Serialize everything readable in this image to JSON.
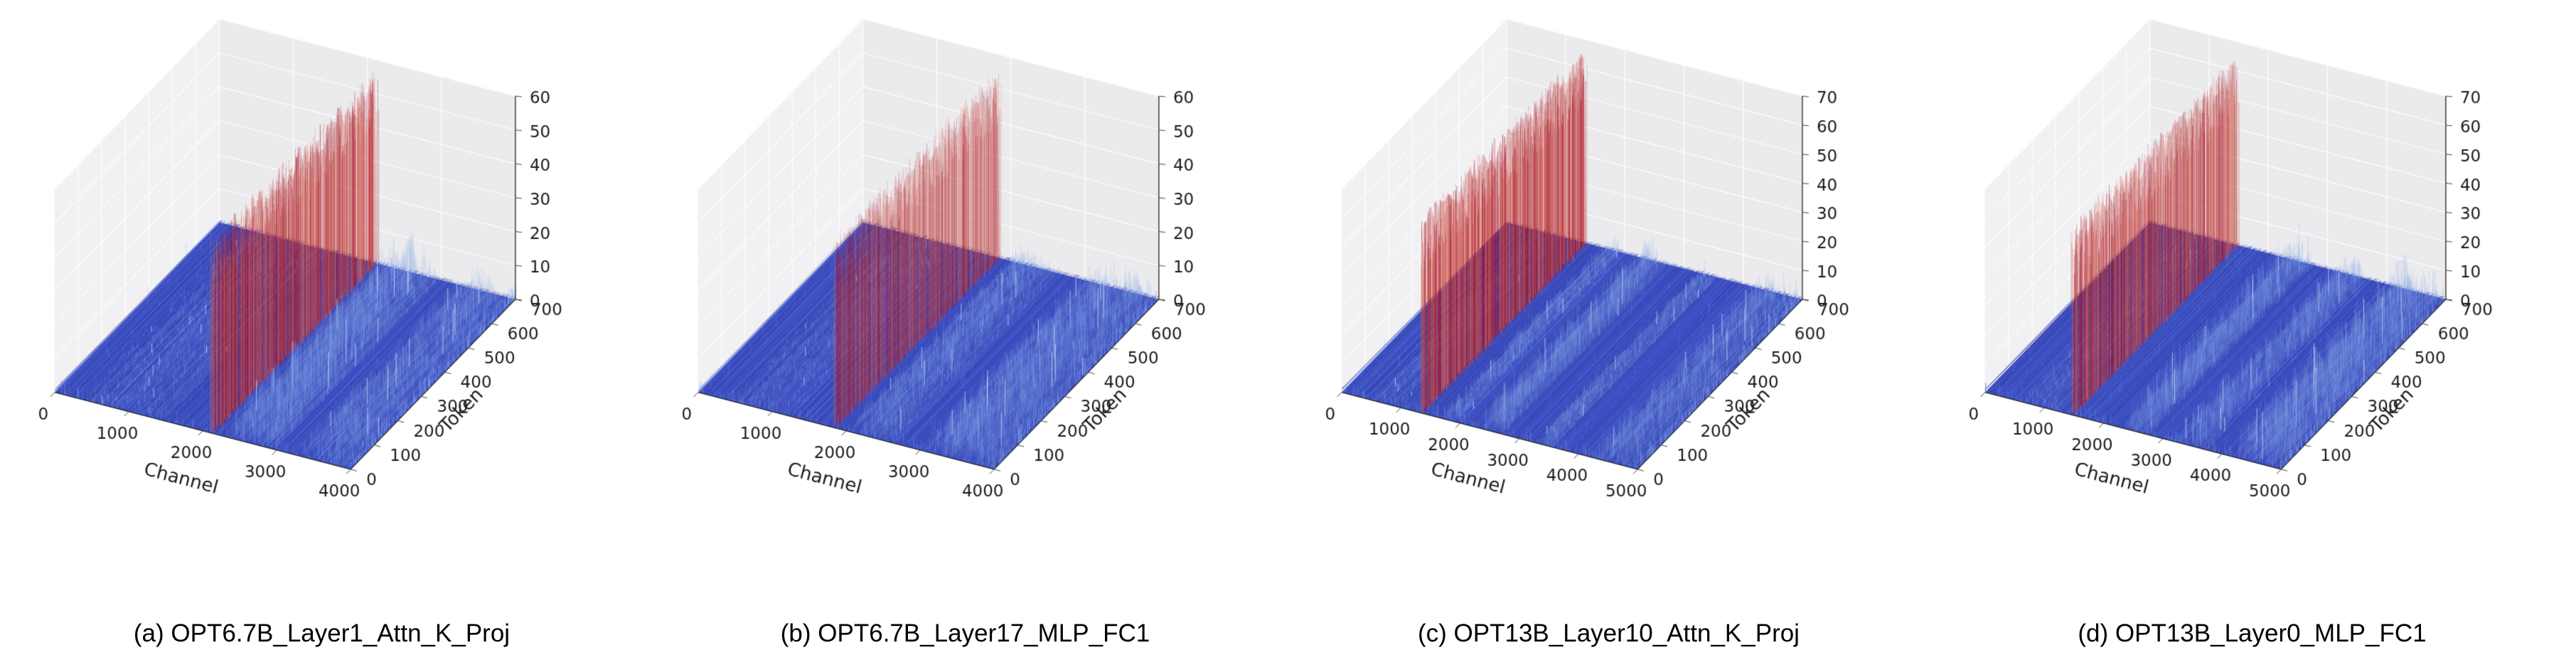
{
  "style": {
    "background": "#ffffff",
    "pane_left": "#f1f1f4",
    "pane_back": "#ebebee",
    "pane_floor": "#f6f6f8",
    "pane_edge": "#d4d4d9",
    "grid": "#ffffff",
    "spine": "#222222",
    "tick_color": "#1a1a1a",
    "caption_color": "#000000",
    "carpet_base": "#3b4cc0",
    "carpet_stripes": [
      "#2f3fae",
      "#4a5ccb",
      "#3b4cc0",
      "#5872d4",
      "#33439f",
      "#4156c6"
    ],
    "speckle": "rgba(125,155,230,0.55)",
    "band_stroke": "rgba(138,170,235,0.32)",
    "band_fill": "rgba(125,160,228,0.10)",
    "band_tip": "rgba(208,224,250,0.95)",
    "wall_colors": [
      [
        178,
        24,
        43
      ],
      [
        214,
        96,
        77
      ],
      [
        152,
        10,
        30
      ],
      [
        226,
        120,
        95
      ]
    ],
    "wall_fill": [
      185,
      28,
      38
    ],
    "front_fuzz": "rgba(100,132,216,0.7)",
    "edge_fuzz": "rgba(128,160,233,0.85)"
  },
  "chart_data": [
    {
      "type": "surface",
      "projection": "3d",
      "title": "(a) OPT6.7B_Layer1_Attn_K_Proj",
      "xlabel": "Channel",
      "ylabel": "Token",
      "xlim": [
        0,
        4000
      ],
      "ylim": [
        0,
        700
      ],
      "zlim": [
        0,
        60
      ],
      "x_ticks": [
        0,
        1000,
        2000,
        3000,
        4000
      ],
      "y_ticks": [
        0,
        100,
        200,
        300,
        400,
        500,
        600,
        700
      ],
      "z_ticks": [
        0,
        10,
        20,
        30,
        40,
        50,
        60
      ],
      "colormap": "coolwarm",
      "legend": "none",
      "grid": true,
      "surface_summary": {
        "baseline_noise_magnitude": 2,
        "outlier_channel": 2130,
        "outlier_peak_magnitude": 58,
        "moderate_bands": [
          {
            "from": 350,
            "to": 1500,
            "peak": 3
          },
          {
            "from": 2300,
            "to": 3000,
            "peak": 15
          },
          {
            "from": 3300,
            "to": 4000,
            "peak": 10
          }
        ],
        "wall_alpha": 0.5,
        "wall_width_frac": 0.02
      }
    },
    {
      "type": "surface",
      "projection": "3d",
      "title": "(b) OPT6.7B_Layer17_MLP_FC1",
      "xlabel": "Channel",
      "ylabel": "Token",
      "xlim": [
        0,
        4000
      ],
      "ylim": [
        0,
        700
      ],
      "zlim": [
        0,
        60
      ],
      "x_ticks": [
        0,
        1000,
        2000,
        3000,
        4000
      ],
      "y_ticks": [
        0,
        100,
        200,
        300,
        400,
        500,
        600,
        700
      ],
      "z_ticks": [
        0,
        10,
        20,
        30,
        40,
        50,
        60
      ],
      "colormap": "coolwarm",
      "legend": "none",
      "grid": true,
      "surface_summary": {
        "baseline_noise_magnitude": 2,
        "outlier_channel": 1850,
        "outlier_peak_magnitude": 57,
        "moderate_bands": [
          {
            "from": 450,
            "to": 1300,
            "peak": 3
          },
          {
            "from": 2050,
            "to": 2650,
            "peak": 9
          },
          {
            "from": 3050,
            "to": 4000,
            "peak": 12
          }
        ],
        "wall_alpha": 0.36,
        "wall_width_frac": 0.02
      }
    },
    {
      "type": "surface",
      "projection": "3d",
      "title": "(c) OPT13B_Layer10_Attn_K_Proj",
      "xlabel": "Channel",
      "ylabel": "Token",
      "xlim": [
        0,
        5000
      ],
      "ylim": [
        0,
        700
      ],
      "zlim": [
        0,
        70
      ],
      "x_ticks": [
        0,
        1000,
        2000,
        3000,
        4000,
        5000
      ],
      "y_ticks": [
        0,
        100,
        200,
        300,
        400,
        500,
        600,
        700
      ],
      "z_ticks": [
        0,
        10,
        20,
        30,
        40,
        50,
        60,
        70
      ],
      "colormap": "coolwarm",
      "legend": "none",
      "grid": true,
      "surface_summary": {
        "baseline_noise_magnitude": 2,
        "outlier_channel": 1350,
        "outlier_peak_magnitude": 68,
        "moderate_bands": [
          {
            "from": 500,
            "to": 1000,
            "peak": 3
          },
          {
            "from": 1700,
            "to": 2000,
            "peak": 7
          },
          {
            "from": 2350,
            "to": 2750,
            "peak": 13
          },
          {
            "from": 3300,
            "to": 3600,
            "peak": 6
          },
          {
            "from": 4300,
            "to": 5000,
            "peak": 12
          }
        ],
        "wall_alpha": 0.55,
        "wall_width_frac": 0.02
      }
    },
    {
      "type": "surface",
      "projection": "3d",
      "title": "(d) OPT13B_Layer0_MLP_FC1",
      "xlabel": "Channel",
      "ylabel": "Token",
      "xlim": [
        0,
        5000
      ],
      "ylim": [
        0,
        700
      ],
      "zlim": [
        0,
        70
      ],
      "x_ticks": [
        0,
        1000,
        2000,
        3000,
        4000,
        5000
      ],
      "y_ticks": [
        0,
        100,
        200,
        300,
        400,
        500,
        600,
        700
      ],
      "z_ticks": [
        0,
        10,
        20,
        30,
        40,
        50,
        60,
        70
      ],
      "colormap": "coolwarm",
      "legend": "none",
      "grid": true,
      "surface_summary": {
        "baseline_noise_magnitude": 2,
        "outlier_channel": 1480,
        "outlier_peak_magnitude": 66,
        "moderate_bands": [
          {
            "from": 600,
            "to": 1200,
            "peak": 4
          },
          {
            "from": 2350,
            "to": 2800,
            "peak": 15
          },
          {
            "from": 3250,
            "to": 3750,
            "peak": 12
          },
          {
            "from": 4150,
            "to": 5000,
            "peak": 17
          }
        ],
        "wall_alpha": 0.46,
        "wall_width_frac": 0.02
      }
    }
  ]
}
